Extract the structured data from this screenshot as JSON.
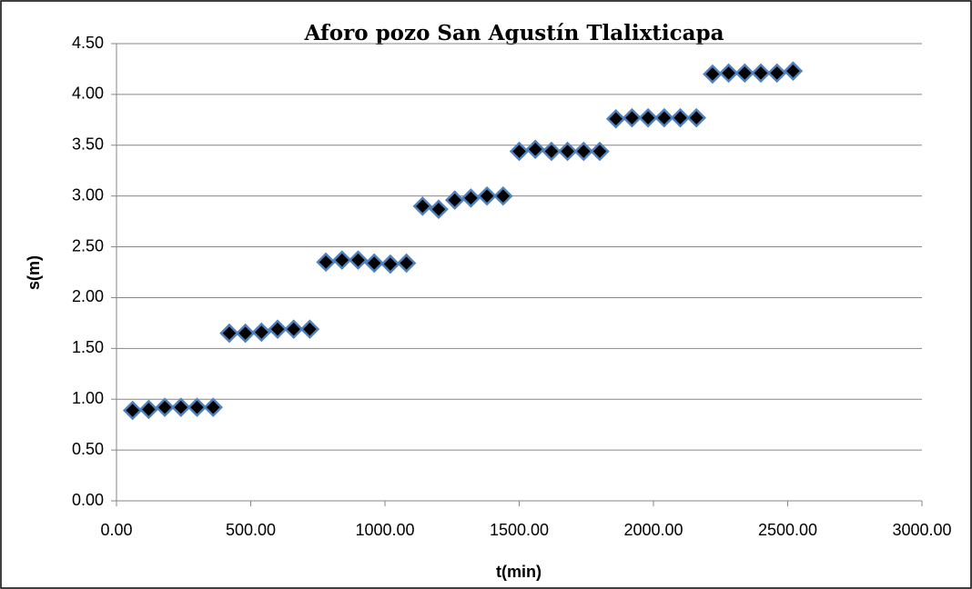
{
  "chart_data": {
    "type": "scatter",
    "title": "Aforo pozo San Agustín Tlalixticapa",
    "xlabel": "t(min)",
    "ylabel": "s(m)",
    "x": [
      60,
      120,
      180,
      240,
      300,
      360,
      420,
      480,
      540,
      600,
      660,
      720,
      780,
      840,
      900,
      960,
      1020,
      1080,
      1140,
      1200,
      1260,
      1320,
      1380,
      1440,
      1500,
      1560,
      1620,
      1680,
      1740,
      1800,
      1860,
      1920,
      1980,
      2040,
      2100,
      2160,
      2220,
      2280,
      2340,
      2400,
      2460,
      2520
    ],
    "values": [
      0.89,
      0.9,
      0.92,
      0.92,
      0.92,
      0.92,
      1.65,
      1.65,
      1.66,
      1.69,
      1.69,
      1.69,
      2.35,
      2.37,
      2.37,
      2.34,
      2.33,
      2.34,
      2.9,
      2.87,
      2.96,
      2.98,
      3.0,
      3.0,
      3.44,
      3.46,
      3.44,
      3.44,
      3.44,
      3.44,
      3.76,
      3.77,
      3.77,
      3.77,
      3.77,
      3.77,
      4.2,
      4.21,
      4.21,
      4.21,
      4.21,
      4.23
    ],
    "color": "#000000",
    "edgecolor": "#4f81bd",
    "xlim": [
      0,
      3000
    ],
    "xticks": [
      {
        "value": 0,
        "label": "0.00"
      },
      {
        "value": 500,
        "label": "500.00"
      },
      {
        "value": 1000,
        "label": "1000.00"
      },
      {
        "value": 1500,
        "label": "1500.00"
      },
      {
        "value": 2000,
        "label": "2000.00"
      },
      {
        "value": 2500,
        "label": "2500.00"
      },
      {
        "value": 3000,
        "label": "3000.00"
      }
    ],
    "ylim": [
      0,
      4.5
    ],
    "yticks": [
      {
        "value": 0,
        "label": "0.00"
      },
      {
        "value": 0.5,
        "label": "0.50"
      },
      {
        "value": 1,
        "label": "1.00"
      },
      {
        "value": 1.5,
        "label": "1.50"
      },
      {
        "value": 2,
        "label": "2.00"
      },
      {
        "value": 2.5,
        "label": "2.50"
      },
      {
        "value": 3,
        "label": "3.00"
      },
      {
        "value": 3.5,
        "label": "3.50"
      },
      {
        "value": 4,
        "label": "4.00"
      },
      {
        "value": 4.5,
        "label": "4.50"
      }
    ],
    "grid": true
  }
}
